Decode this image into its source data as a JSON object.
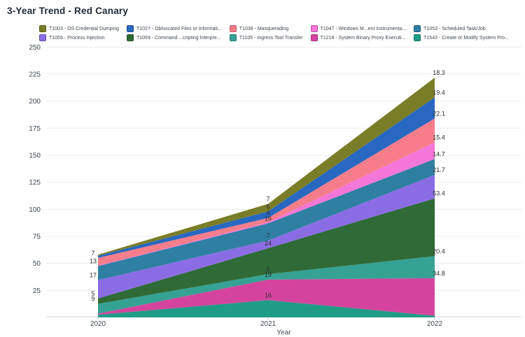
{
  "title": "3-Year Trend - Red Canary",
  "axes": {
    "x_title": "Year",
    "x_ticks": [
      "2020",
      "2021",
      "2022"
    ],
    "y_ticks": [
      "25",
      "50",
      "75",
      "100",
      "125",
      "150",
      "175",
      "200",
      "225",
      "250"
    ]
  },
  "chart_data": {
    "type": "area",
    "stacked": true,
    "title": "3-Year Trend - Red Canary",
    "xlabel": "Year",
    "x": [
      "2020",
      "2021",
      "2022"
    ],
    "ylim": [
      0,
      250
    ],
    "ytick_step": 25,
    "grid": true,
    "legend_position": "top",
    "series_note": "Stack order top-to-bottom as listed; values without a visible point label are estimated from band heights",
    "series": [
      {
        "id": "T1003",
        "label": "T1003 - OS Credential Dumping",
        "color": "#7a7d28",
        "values": [
          1,
          7,
          18.3
        ],
        "point_labels": [
          "",
          "7",
          "18.3"
        ]
      },
      {
        "id": "T1027",
        "label": "T1027 - Obfuscated Files or Informati...",
        "color": "#2868c0",
        "values": [
          2,
          6,
          19.4
        ],
        "point_labels": [
          "",
          "6",
          "19.4"
        ]
      },
      {
        "id": "T1036",
        "label": "T1036 - Masquerading",
        "color": "#f87d8b",
        "values": [
          7,
          4,
          22.1
        ],
        "point_labels": [
          "7",
          "4",
          "22.1"
        ]
      },
      {
        "id": "T1047",
        "label": "T1047 - Windows M...ent Instrumenta...",
        "color": "#f376d8",
        "values": [
          0.5,
          1,
          15.4
        ],
        "point_labels": [
          "",
          "",
          "15.4"
        ]
      },
      {
        "id": "T1053",
        "label": "T1053 - Scheduled Task/Job",
        "color": "#2f7fa3",
        "values": [
          13,
          16,
          14.7
        ],
        "point_labels": [
          "13",
          "16",
          "14.7"
        ]
      },
      {
        "id": "T1055",
        "label": "T1055 - Process Injection",
        "color": "#8a6de4",
        "values": [
          17,
          7,
          21.7
        ],
        "point_labels": [
          "17",
          "7",
          "21.7"
        ]
      },
      {
        "id": "T1059",
        "label": "T1059 - Command ...cripting Interpre...",
        "color": "#2f6a37",
        "values": [
          5,
          24,
          53.4
        ],
        "point_labels": [
          "5",
          "24",
          "53.4"
        ]
      },
      {
        "id": "T1105",
        "label": "T1105 - Ingress Tool Transfer",
        "color": "#35a294",
        "values": [
          9,
          5,
          20.4
        ],
        "point_labels": [
          "9",
          "5",
          "20.4"
        ]
      },
      {
        "id": "T1218",
        "label": "T1218 - System Binary Proxy Executi...",
        "color": "#d4449e",
        "values": [
          1,
          19,
          34.8
        ],
        "point_labels": [
          "",
          "19",
          "34.8"
        ]
      },
      {
        "id": "T1543",
        "label": "T1543 - Create or Modify System Pro...",
        "color": "#1f9c86",
        "values": [
          2.5,
          16,
          1.5
        ],
        "point_labels": [
          "",
          "16",
          ""
        ]
      }
    ],
    "legend_columns": [
      [
        "T1003",
        "T1055"
      ],
      [
        "T1027",
        "T1059"
      ],
      [
        "T1036",
        "T1105"
      ],
      [
        "T1047",
        "T1218"
      ],
      [
        "T1053",
        "T1543"
      ]
    ],
    "colors": {
      "grid": "#ececf1",
      "axis_line": "#d2d2d6",
      "tick_text": "#3d4852",
      "data_label": "#2d2d2d"
    }
  }
}
